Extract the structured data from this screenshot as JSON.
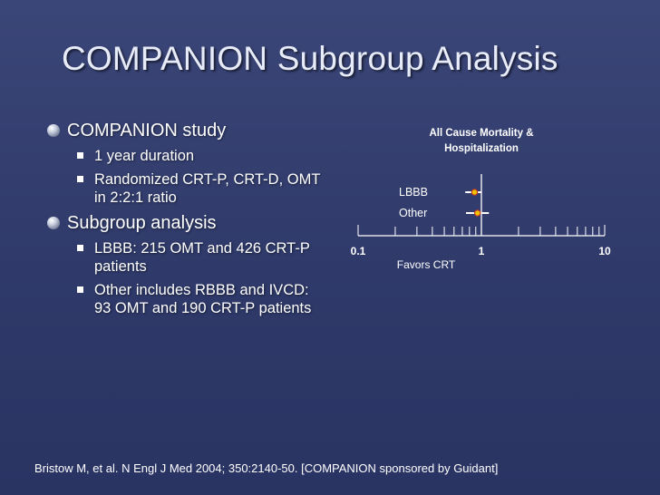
{
  "slide": {
    "title": "COMPANION Subgroup Analysis",
    "bullets": [
      {
        "text": "COMPANION study",
        "sub": [
          "1 year duration",
          "Randomized CRT-P, CRT-D, OMT in 2:2:1 ratio"
        ]
      },
      {
        "text": "Subgroup analysis",
        "sub": [
          "LBBB: 215 OMT and 426 CRT-P patients",
          "Other includes RBBB and IVCD: 93 OMT and 190 CRT-P patients"
        ]
      }
    ],
    "citation": "Bristow M, et al. N Engl J Med 2004; 350:2140-50. [COMPANION sponsored by Guidant]"
  },
  "chart_data": {
    "type": "forest",
    "title_lines": [
      "All Cause Mortality &",
      "Hospitalization"
    ],
    "scale": "log",
    "xlim": [
      0.1,
      10
    ],
    "tick_labels": [
      "0.1",
      "1",
      "10"
    ],
    "xlabel": "Favors CRT",
    "reference_line": 1,
    "rows": [
      {
        "label": "LBBB",
        "estimate": 0.88,
        "ci": [
          0.74,
          1.0
        ]
      },
      {
        "label": "Other",
        "estimate": 0.93,
        "ci": [
          0.75,
          1.15
        ]
      }
    ],
    "colors": {
      "point_fill": "#f2c400",
      "point_edge": "#c0392b",
      "axis": "#ffffff"
    }
  }
}
